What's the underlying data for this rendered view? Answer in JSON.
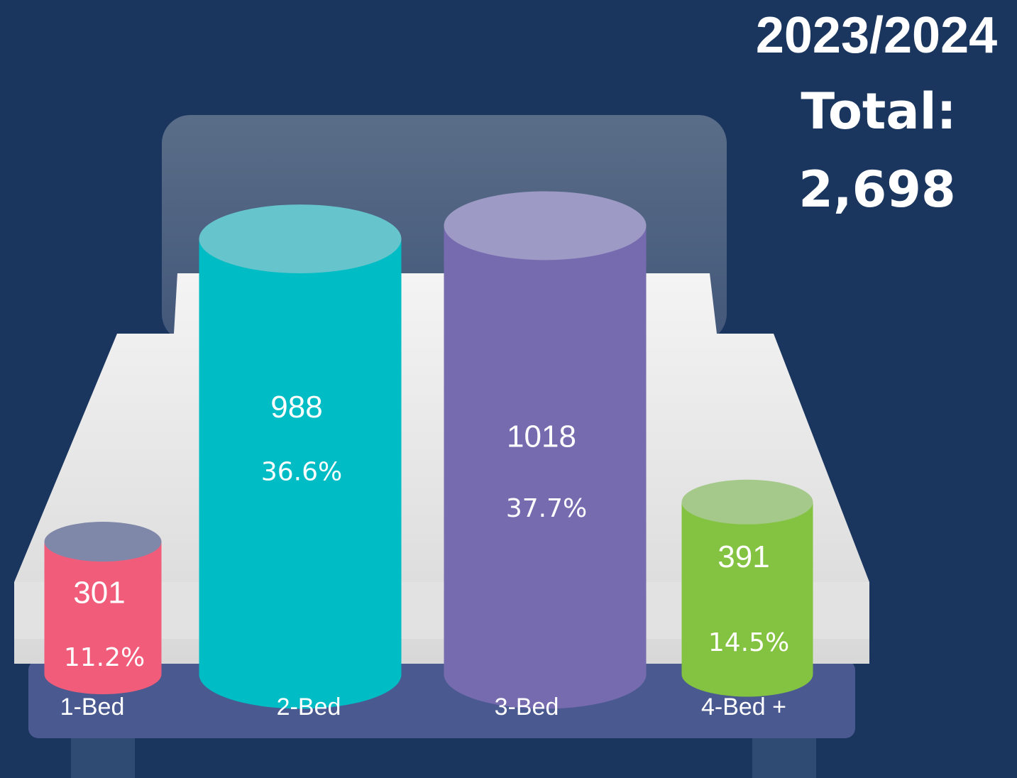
{
  "chart_data": {
    "type": "bar",
    "title_lines": [
      "2023/2024",
      "Total:",
      "2,698"
    ],
    "categories": [
      "1-Bed",
      "2-Bed",
      "3-Bed",
      "4-Bed +"
    ],
    "values": [
      301,
      988,
      1018,
      391
    ],
    "share_labels": [
      "11.2%",
      "36.6%",
      "37.7%",
      "14.5%"
    ],
    "colors": [
      "#f05c7a",
      "#00bcc4",
      "#776bb0",
      "#84c341"
    ],
    "top_colors": [
      "#8088aa",
      "#66c4cc",
      "#9d9ac6",
      "#a5c98a"
    ],
    "ylim": [
      0,
      1530
    ]
  }
}
